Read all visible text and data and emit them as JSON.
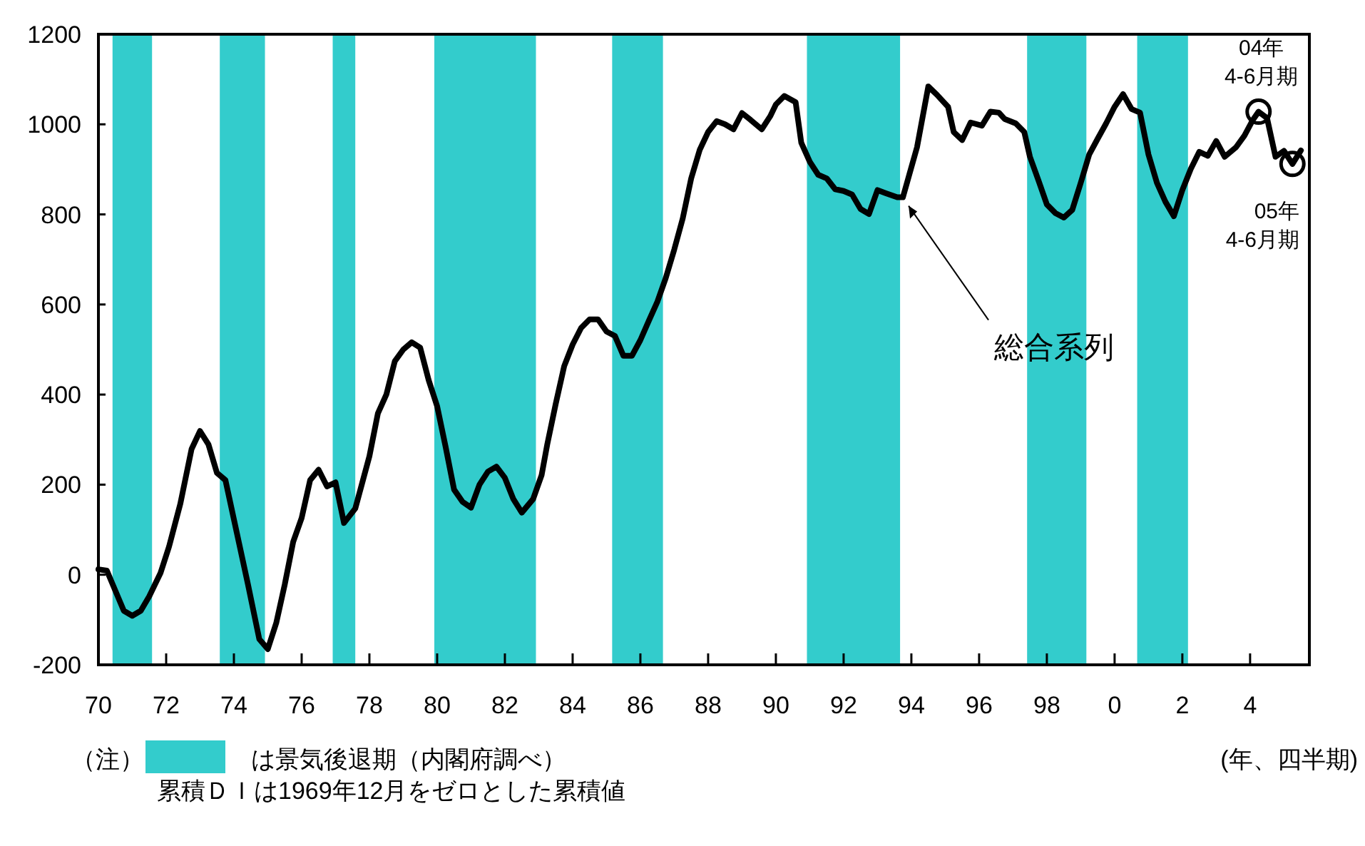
{
  "chart_data": {
    "type": "line",
    "xlabel": "(年、四半期)",
    "xlim": [
      "1970-01",
      "2005-10"
    ],
    "xticks": [
      {
        "value": "1970",
        "label": "70"
      },
      {
        "value": "1972",
        "label": "72"
      },
      {
        "value": "1974",
        "label": "74"
      },
      {
        "value": "1976",
        "label": "76"
      },
      {
        "value": "1978",
        "label": "78"
      },
      {
        "value": "1980",
        "label": "80"
      },
      {
        "value": "1982",
        "label": "82"
      },
      {
        "value": "1984",
        "label": "84"
      },
      {
        "value": "1986",
        "label": "86"
      },
      {
        "value": "1988",
        "label": "88"
      },
      {
        "value": "1990",
        "label": "90"
      },
      {
        "value": "1992",
        "label": "92"
      },
      {
        "value": "1994",
        "label": "94"
      },
      {
        "value": "1996",
        "label": "96"
      },
      {
        "value": "1998",
        "label": "98"
      },
      {
        "value": "2000",
        "label": "0"
      },
      {
        "value": "2002",
        "label": "2"
      },
      {
        "value": "2004",
        "label": "4"
      }
    ],
    "ylim": [
      -200,
      1200
    ],
    "yticks": [
      -200,
      0,
      200,
      400,
      600,
      800,
      1000,
      1200
    ],
    "grid": false,
    "legend": "bottom left",
    "marker": "none",
    "line_style": "solid",
    "series": [
      {
        "color": "#000000",
        "x": [
          "1970-01",
          "1970-04",
          "1970-10",
          "1971-01",
          "1971-04",
          "1971-07",
          "1971-11",
          "1972-02",
          "1972-06",
          "1972-10",
          "1973-01",
          "1973-04",
          "1973-07",
          "1973-10",
          "1974-02",
          "1974-06",
          "1974-10",
          "1975-01",
          "1975-04",
          "1975-07",
          "1975-10",
          "1976-01",
          "1976-04",
          "1976-07",
          "1976-10",
          "1977-01",
          "1977-04",
          "1977-08",
          "1978-01",
          "1978-04",
          "1978-07",
          "1978-10",
          "1979-01",
          "1979-04",
          "1979-07",
          "1979-10",
          "1980-01",
          "1980-04",
          "1980-07",
          "1980-10",
          "1981-01",
          "1981-04",
          "1981-07",
          "1981-10",
          "1982-01",
          "1982-04",
          "1982-07",
          "1982-11",
          "1983-02",
          "1983-04",
          "1983-07",
          "1983-10",
          "1984-01",
          "1984-04",
          "1984-07",
          "1984-10",
          "1985-01",
          "1985-04",
          "1985-07",
          "1985-10",
          "1986-01",
          "1986-04",
          "1986-07",
          "1986-10",
          "1987-01",
          "1987-04",
          "1987-07",
          "1987-10",
          "1988-01",
          "1988-04",
          "1988-07",
          "1988-10",
          "1989-01",
          "1989-04",
          "1989-08",
          "1989-11",
          "1990-01",
          "1990-04",
          "1990-08",
          "1990-10",
          "1991-01",
          "1991-04",
          "1991-07",
          "1991-10",
          "1992-01",
          "1992-04",
          "1992-07",
          "1992-10",
          "1993-01",
          "1993-04",
          "1993-08",
          "1993-10",
          "1994-03",
          "1994-07",
          "1994-10",
          "1995-02",
          "1995-04",
          "1995-07",
          "1995-10",
          "1996-02",
          "1996-05",
          "1996-08",
          "1996-10",
          "1997-02",
          "1997-05",
          "1997-07",
          "1997-10",
          "1998-01",
          "1998-04",
          "1998-07",
          "1998-10",
          "1999-01",
          "1999-04",
          "1999-07",
          "1999-10",
          "2000-01",
          "2000-04",
          "2000-07",
          "2000-10",
          "2001-01",
          "2001-04",
          "2001-07",
          "2001-10",
          "2002-01",
          "2002-04",
          "2002-07",
          "2002-10",
          "2003-01",
          "2003-04",
          "2003-08",
          "2003-11",
          "2004-02",
          "2004-04",
          "2004-07",
          "2004-10",
          "2005-01",
          "2005-04",
          "2005-07"
        ],
        "values": [
          12,
          9,
          -80,
          -91,
          -80,
          -48,
          4,
          62,
          157,
          279,
          319,
          289,
          226,
          210,
          94,
          -22,
          -143,
          -165,
          -107,
          -22,
          73,
          126,
          210,
          233,
          196,
          205,
          115,
          147,
          263,
          358,
          400,
          474,
          500,
          516,
          504,
          432,
          374,
          284,
          189,
          162,
          149,
          200,
          229,
          240,
          215,
          168,
          138,
          168,
          221,
          289,
          379,
          463,
          511,
          548,
          567,
          567,
          540,
          530,
          486,
          486,
          521,
          564,
          606,
          659,
          722,
          791,
          880,
          943,
          983,
          1007,
          1000,
          989,
          1025,
          1010,
          989,
          1018,
          1044,
          1063,
          1049,
          959,
          917,
          888,
          880,
          856,
          852,
          844,
          812,
          801,
          854,
          847,
          838,
          838,
          949,
          1084,
          1066,
          1039,
          983,
          965,
          1004,
          997,
          1028,
          1026,
          1012,
          1002,
          983,
          928,
          876,
          822,
          803,
          793,
          810,
          870,
          933,
          968,
          1002,
          1039,
          1067,
          1034,
          1026,
          933,
          870,
          828,
          796,
          854,
          901,
          939,
          930,
          963,
          928,
          949,
          975,
          1010,
          1028,
          1014,
          928,
          941,
          912,
          942
        ]
      }
    ],
    "bands": [
      {
        "axis": "x",
        "from": "1970-06",
        "to": "1971-08",
        "color": "#33cccc",
        "label": "は景気後退期（内閣府調べ）"
      },
      {
        "axis": "x",
        "from": "1973-08",
        "to": "1974-12",
        "color": "#33cccc"
      },
      {
        "axis": "x",
        "from": "1976-12",
        "to": "1977-08",
        "color": "#33cccc"
      },
      {
        "axis": "x",
        "from": "1979-12",
        "to": "1982-12",
        "color": "#33cccc"
      },
      {
        "axis": "x",
        "from": "1985-03",
        "to": "1986-09",
        "color": "#33cccc"
      },
      {
        "axis": "x",
        "from": "1990-12",
        "to": "1993-09",
        "color": "#33cccc"
      },
      {
        "axis": "x",
        "from": "1997-06",
        "to": "1999-03",
        "color": "#33cccc"
      },
      {
        "axis": "x",
        "from": "2000-09",
        "to": "2002-03",
        "color": "#33cccc"
      }
    ],
    "annotations": [
      {
        "text": "総合系列",
        "x": "1993-10",
        "y": 838
      },
      {
        "text": "04年\n4-6月期",
        "x": "2004-04",
        "y": 1028
      },
      {
        "text": "05年\n4-6月期",
        "x": "2005-04",
        "y": 912
      },
      "（注）",
      "累積ＤＩは1969年12月をゼロとした累積値"
    ]
  }
}
